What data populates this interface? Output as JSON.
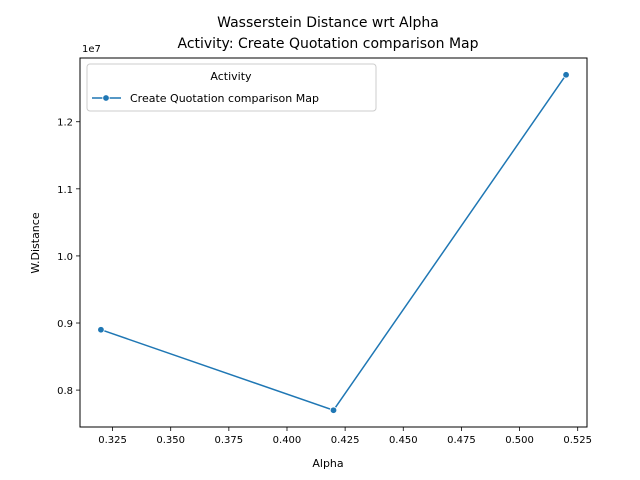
{
  "chart_data": {
    "type": "line",
    "title": "Wasserstein Distance wrt Alpha",
    "subtitle": "Activity: Create Quotation comparison Map",
    "xlabel": "Alpha",
    "ylabel": "W.Distance",
    "y_multiplier_label": "1e7",
    "xlim": [
      0.311,
      0.529
    ],
    "ylim": [
      7.45,
      12.95
    ],
    "x_ticks": [
      "0.325",
      "0.350",
      "0.375",
      "0.400",
      "0.425",
      "0.450",
      "0.475",
      "0.500",
      "0.525"
    ],
    "x_tick_values": [
      0.325,
      0.35,
      0.375,
      0.4,
      0.425,
      0.45,
      0.475,
      0.5,
      0.525
    ],
    "y_ticks": [
      "0.8",
      "0.9",
      "1.0",
      "1.1",
      "1.2"
    ],
    "y_tick_values": [
      8.0,
      9.0,
      10.0,
      11.0,
      12.0
    ],
    "grid": false,
    "legend": {
      "title": "Activity",
      "placement": "top-left"
    },
    "series": [
      {
        "name": "Create Quotation comparison Map",
        "color": "#1f77b4",
        "marker": "circle",
        "x": [
          0.32,
          0.42,
          0.52
        ],
        "y": [
          8.9,
          7.7,
          12.7
        ]
      }
    ]
  }
}
